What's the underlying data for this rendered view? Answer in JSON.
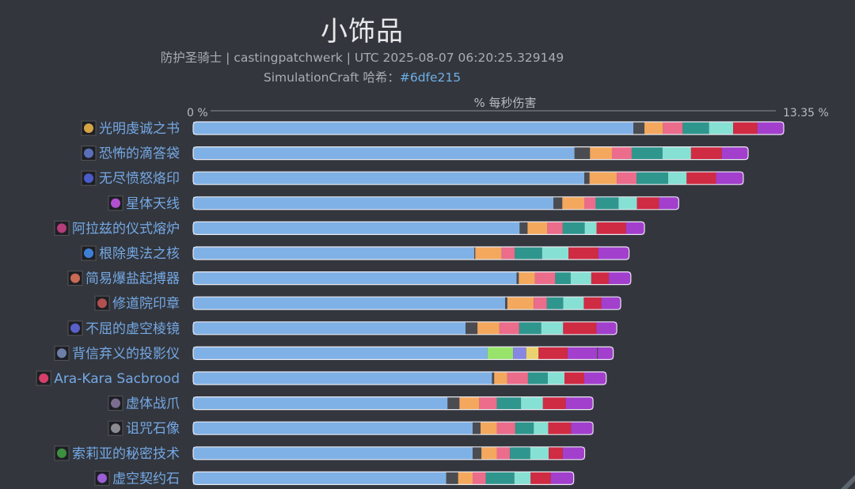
{
  "header": {
    "title": "小饰品",
    "subtitle": "防护圣骑士 | castingpatchwerk | UTC 2025-08-07 06:20:25.329149",
    "hash_prefix": "SimulationCraft 哈希：",
    "hash_value": "#6dfe215"
  },
  "chart_data": {
    "type": "bar",
    "orientation": "horizontal",
    "stacked": true,
    "xlabel": "% 每秒伤害",
    "axis_min_label": "0 %",
    "axis_max_label": "13.35 %",
    "xlim": [
      0,
      13.35
    ],
    "colors": [
      "#7fb1e6",
      "#4a4c52",
      "#f3a85e",
      "#eb6c8b",
      "#2f968e",
      "#86e0d3",
      "#cf2b43",
      "#a23fcd",
      "#98e36b",
      "#8787e3",
      "#ead36f"
    ],
    "categories": [
      {
        "name": "光明虔诚之书",
        "icon": "book-icon",
        "icon_color": "#d6a443",
        "segments": [
          [
            0,
            10.02
          ],
          [
            1,
            0.25
          ],
          [
            2,
            0.42
          ],
          [
            3,
            0.45
          ],
          [
            4,
            0.6
          ],
          [
            5,
            0.55
          ],
          [
            6,
            0.55
          ],
          [
            7,
            0.6
          ]
        ]
      },
      {
        "name": "恐怖的滴答袋",
        "icon": "bag-icon",
        "icon_color": "#5a6fb8",
        "segments": [
          [
            0,
            8.68
          ],
          [
            1,
            0.35
          ],
          [
            2,
            0.5
          ],
          [
            3,
            0.45
          ],
          [
            4,
            0.7
          ],
          [
            5,
            0.65
          ],
          [
            6,
            0.7
          ],
          [
            7,
            0.6
          ]
        ]
      },
      {
        "name": "无尽愤怒烙印",
        "icon": "brand-icon",
        "icon_color": "#4b5bc9",
        "segments": [
          [
            0,
            8.9
          ],
          [
            1,
            0.12
          ],
          [
            2,
            0.62
          ],
          [
            3,
            0.45
          ],
          [
            4,
            0.72
          ],
          [
            5,
            0.42
          ],
          [
            6,
            0.67
          ],
          [
            7,
            0.62
          ]
        ]
      },
      {
        "name": "星体天线",
        "icon": "antenna-icon",
        "icon_color": "#b34fd1",
        "segments": [
          [
            0,
            8.2
          ],
          [
            1,
            0.2
          ],
          [
            2,
            0.5
          ],
          [
            3,
            0.26
          ],
          [
            4,
            0.52
          ],
          [
            5,
            0.42
          ],
          [
            6,
            0.5
          ],
          [
            7,
            0.45
          ]
        ]
      },
      {
        "name": "阿拉兹的仪式熔炉",
        "icon": "forge-icon",
        "icon_color": "#b43d7a",
        "segments": [
          [
            0,
            7.43
          ],
          [
            1,
            0.18
          ],
          [
            2,
            0.45
          ],
          [
            3,
            0.35
          ],
          [
            4,
            0.5
          ],
          [
            5,
            0.27
          ],
          [
            6,
            0.67
          ],
          [
            7,
            0.42
          ]
        ]
      },
      {
        "name": "根除奥法之核",
        "icon": "core-icon",
        "icon_color": "#3e7fd6",
        "segments": [
          [
            0,
            6.4
          ],
          [
            1,
            0.02
          ],
          [
            2,
            0.6
          ],
          [
            3,
            0.3
          ],
          [
            4,
            0.62
          ],
          [
            5,
            0.6
          ],
          [
            6,
            0.68
          ],
          [
            7,
            0.7
          ]
        ]
      },
      {
        "name": "简易爆盐起搏器",
        "icon": "pacemaker-icon",
        "icon_color": "#c86a55",
        "segments": [
          [
            0,
            7.36
          ],
          [
            1,
            0.05
          ],
          [
            2,
            0.37
          ],
          [
            3,
            0.46
          ],
          [
            4,
            0.35
          ],
          [
            5,
            0.47
          ],
          [
            6,
            0.4
          ],
          [
            7,
            0.5
          ]
        ]
      },
      {
        "name": "修道院印章",
        "icon": "seal-icon",
        "icon_color": "#b0504f",
        "segments": [
          [
            0,
            7.1
          ],
          [
            1,
            0.05
          ],
          [
            2,
            0.6
          ],
          [
            3,
            0.3
          ],
          [
            4,
            0.37
          ],
          [
            5,
            0.47
          ],
          [
            6,
            0.4
          ],
          [
            7,
            0.44
          ]
        ]
      },
      {
        "name": "不屈的虚空棱镜",
        "icon": "prism-icon",
        "icon_color": "#5960c8",
        "segments": [
          [
            0,
            6.2
          ],
          [
            1,
            0.27
          ],
          [
            2,
            0.5
          ],
          [
            3,
            0.45
          ],
          [
            4,
            0.5
          ],
          [
            5,
            0.5
          ],
          [
            6,
            0.76
          ],
          [
            7,
            0.46
          ]
        ]
      },
      {
        "name": "背信弃义的投影仪",
        "icon": "projector-icon",
        "icon_color": "#6d7fa8",
        "segments": [
          [
            0,
            6.7
          ],
          [
            8,
            0.58
          ],
          [
            9,
            0.3
          ],
          [
            10,
            0.28
          ],
          [
            6,
            0.66
          ],
          [
            7,
            0.67
          ],
          [
            1,
            0.02
          ],
          [
            7,
            0.35
          ]
        ]
      },
      {
        "name": "Ara-Kara Sacbrood",
        "icon": "sacbrood-icon",
        "icon_color": "#d53f6a",
        "segments": [
          [
            0,
            6.8
          ],
          [
            1,
            0.05
          ],
          [
            2,
            0.3
          ],
          [
            3,
            0.47
          ],
          [
            4,
            0.45
          ],
          [
            5,
            0.38
          ],
          [
            6,
            0.45
          ],
          [
            7,
            0.5
          ]
        ]
      },
      {
        "name": "虚体战爪",
        "icon": "claw-icon",
        "icon_color": "#7a6d8f",
        "segments": [
          [
            0,
            5.79
          ],
          [
            1,
            0.27
          ],
          [
            2,
            0.45
          ],
          [
            3,
            0.4
          ],
          [
            4,
            0.55
          ],
          [
            5,
            0.5
          ],
          [
            6,
            0.52
          ],
          [
            7,
            0.62
          ]
        ]
      },
      {
        "name": "诅咒石像",
        "icon": "statue-icon",
        "icon_color": "#8a8a90",
        "segments": [
          [
            0,
            6.36
          ],
          [
            1,
            0.18
          ],
          [
            2,
            0.37
          ],
          [
            3,
            0.42
          ],
          [
            4,
            0.42
          ],
          [
            5,
            0.33
          ],
          [
            6,
            0.52
          ],
          [
            7,
            0.5
          ]
        ]
      },
      {
        "name": "索莉亚的秘密技术",
        "icon": "tech-icon",
        "icon_color": "#3d8f3f",
        "segments": [
          [
            0,
            6.36
          ],
          [
            1,
            0.2
          ],
          [
            2,
            0.35
          ],
          [
            3,
            0.3
          ],
          [
            4,
            0.46
          ],
          [
            5,
            0.42
          ],
          [
            6,
            0.32
          ],
          [
            7,
            0.5
          ]
        ]
      },
      {
        "name": "虚空契约石",
        "icon": "voidstone-icon",
        "icon_color": "#9a5fd3",
        "segments": [
          [
            0,
            5.76
          ],
          [
            1,
            0.27
          ],
          [
            2,
            0.33
          ],
          [
            3,
            0.3
          ],
          [
            4,
            0.65
          ],
          [
            5,
            0.37
          ],
          [
            6,
            0.46
          ],
          [
            7,
            0.52
          ]
        ]
      }
    ]
  }
}
